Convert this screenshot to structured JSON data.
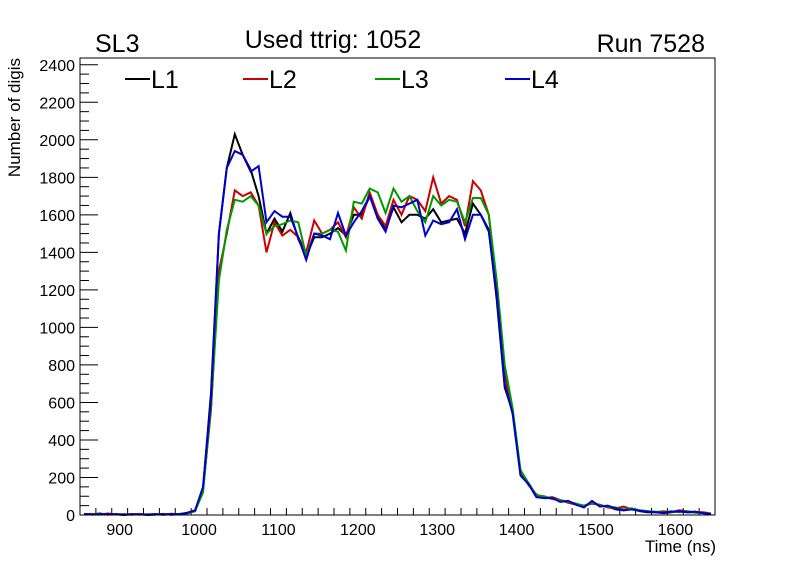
{
  "chart_data": {
    "type": "line",
    "title_left": "SL3",
    "title": "Used ttrig: 1052",
    "title_right": "Run 7528",
    "xlabel": "Time (ns)",
    "ylabel": "Number of digis",
    "xlim": [
      850,
      1650
    ],
    "ylim": [
      0,
      2436
    ],
    "xticks": [
      900,
      1000,
      1100,
      1200,
      1300,
      1400,
      1500,
      1600
    ],
    "yticks": [
      0,
      200,
      400,
      600,
      800,
      1000,
      1200,
      1400,
      1600,
      1800,
      2000,
      2200,
      2400
    ],
    "grid": false,
    "legend_position": "top",
    "x_start": 855,
    "x_step": 10,
    "series": [
      {
        "name": "L1",
        "color": "#000000",
        "values": [
          5,
          3,
          8,
          2,
          4,
          0,
          3,
          5,
          0,
          2,
          6,
          1,
          4,
          10,
          20,
          140,
          650,
          1500,
          1850,
          2030,
          1920,
          1840,
          1700,
          1500,
          1580,
          1510,
          1610,
          1470,
          1380,
          1480,
          1480,
          1500,
          1530,
          1490,
          1600,
          1600,
          1700,
          1600,
          1520,
          1640,
          1560,
          1600,
          1600,
          1580,
          1630,
          1560,
          1570,
          1580,
          1500,
          1660,
          1600,
          1520,
          1150,
          680,
          550,
          220,
          170,
          100,
          95,
          90,
          75,
          70,
          60,
          45,
          70,
          50,
          45,
          30,
          25,
          35,
          20,
          15,
          15,
          10,
          15,
          20,
          15,
          15,
          12,
          5
        ]
      },
      {
        "name": "L2",
        "color": "#cc0000",
        "values": [
          4,
          6,
          2,
          8,
          3,
          5,
          1,
          6,
          2,
          4,
          3,
          7,
          5,
          12,
          25,
          130,
          560,
          1300,
          1500,
          1730,
          1700,
          1720,
          1650,
          1400,
          1560,
          1490,
          1520,
          1480,
          1400,
          1570,
          1500,
          1520,
          1560,
          1480,
          1640,
          1580,
          1720,
          1600,
          1540,
          1680,
          1600,
          1700,
          1680,
          1620,
          1800,
          1660,
          1700,
          1680,
          1540,
          1780,
          1730,
          1600,
          1200,
          750,
          560,
          230,
          160,
          110,
          90,
          95,
          80,
          65,
          55,
          50,
          60,
          55,
          40,
          35,
          45,
          30,
          25,
          20,
          15,
          20,
          15,
          25,
          20,
          15,
          15,
          8
        ]
      },
      {
        "name": "L3",
        "color": "#009900",
        "values": [
          3,
          4,
          5,
          2,
          6,
          2,
          4,
          3,
          1,
          5,
          2,
          4,
          6,
          8,
          22,
          120,
          580,
          1250,
          1520,
          1680,
          1670,
          1700,
          1650,
          1500,
          1540,
          1550,
          1570,
          1560,
          1380,
          1500,
          1500,
          1520,
          1510,
          1410,
          1670,
          1660,
          1740,
          1720,
          1610,
          1740,
          1670,
          1700,
          1620,
          1560,
          1700,
          1650,
          1680,
          1670,
          1560,
          1690,
          1690,
          1600,
          1250,
          800,
          570,
          240,
          170,
          105,
          100,
          85,
          80,
          70,
          60,
          50,
          65,
          50,
          45,
          40,
          30,
          35,
          25,
          20,
          18,
          15,
          20,
          15,
          20,
          12,
          10,
          6
        ]
      },
      {
        "name": "L4",
        "color": "#0000cc",
        "values": [
          6,
          2,
          4,
          5,
          3,
          1,
          5,
          2,
          3,
          4,
          1,
          5,
          3,
          11,
          25,
          150,
          620,
          1500,
          1850,
          1940,
          1920,
          1830,
          1860,
          1560,
          1620,
          1590,
          1590,
          1480,
          1360,
          1500,
          1490,
          1470,
          1610,
          1490,
          1560,
          1620,
          1700,
          1580,
          1510,
          1650,
          1640,
          1660,
          1680,
          1490,
          1570,
          1550,
          1560,
          1630,
          1470,
          1600,
          1600,
          1510,
          1180,
          700,
          540,
          210,
          165,
          95,
          90,
          90,
          70,
          75,
          55,
          40,
          75,
          45,
          50,
          35,
          25,
          30,
          22,
          18,
          15,
          12,
          18,
          20,
          15,
          18,
          10,
          5
        ]
      }
    ]
  }
}
